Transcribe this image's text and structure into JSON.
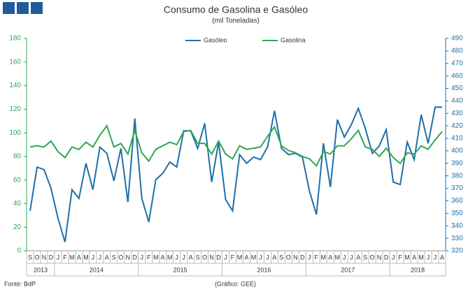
{
  "chart_data": {
    "type": "line",
    "title": "Consumo de Gasolina e Gasóleo",
    "subtitle": "(mil Toneladas)",
    "categories": [
      "S",
      "O",
      "N",
      "D",
      "J",
      "F",
      "M",
      "A",
      "M",
      "J",
      "J",
      "A",
      "S",
      "O",
      "N",
      "D",
      "J",
      "F",
      "M",
      "A",
      "M",
      "J",
      "J",
      "A",
      "S",
      "O",
      "N",
      "D",
      "J",
      "F",
      "M",
      "A",
      "M",
      "J",
      "J",
      "A",
      "S",
      "O",
      "N",
      "D",
      "J",
      "F",
      "M",
      "A",
      "M",
      "J",
      "J",
      "A",
      "S",
      "O",
      "N",
      "D",
      "J",
      "F",
      "M",
      "A",
      "M",
      "J",
      "J",
      "A"
    ],
    "year_groups": [
      {
        "label": "2013",
        "months": 4
      },
      {
        "label": "2014",
        "months": 12
      },
      {
        "label": "2015",
        "months": 12
      },
      {
        "label": "2016",
        "months": 12
      },
      {
        "label": "2017",
        "months": 12
      },
      {
        "label": "2018",
        "months": 8
      }
    ],
    "series": [
      {
        "name": "Gasóleo",
        "color": "#1f6fa8",
        "axis": "y2",
        "values": [
          352,
          387,
          385,
          370,
          346,
          327,
          369,
          362,
          390,
          369,
          403,
          398,
          376,
          402,
          359,
          426,
          362,
          343,
          377,
          382,
          391,
          387,
          416,
          416,
          402,
          422,
          375,
          407,
          361,
          352,
          397,
          390,
          395,
          393,
          403,
          432,
          402,
          397,
          398,
          395,
          368,
          349,
          406,
          371,
          425,
          411,
          421,
          434,
          418,
          398,
          404,
          417,
          375,
          373,
          407,
          393,
          429,
          406,
          435,
          435
        ]
      },
      {
        "name": "Gasolina",
        "color": "#2ea84f",
        "values": [
          88,
          89,
          88,
          93,
          84,
          79,
          88,
          86,
          92,
          88,
          98,
          106,
          88,
          91,
          82,
          102,
          83,
          76,
          86,
          89,
          92,
          90,
          101,
          102,
          91,
          91,
          82,
          93,
          82,
          78,
          89,
          86,
          87,
          88,
          97,
          105,
          89,
          85,
          83,
          80,
          78,
          72,
          84,
          82,
          89,
          89,
          95,
          102,
          88,
          86,
          80,
          87,
          79,
          74,
          83,
          82,
          89,
          86,
          94,
          101
        ]
      }
    ],
    "ylim": [
      0,
      180
    ],
    "yticks": [
      0,
      20,
      40,
      60,
      80,
      100,
      120,
      140,
      160,
      180
    ],
    "y2lim": [
      320,
      490
    ],
    "y2ticks": [
      320,
      330,
      340,
      350,
      360,
      370,
      380,
      390,
      400,
      410,
      420,
      430,
      440,
      450,
      460,
      470,
      480,
      490
    ],
    "grid": false,
    "source": "Fonte: BdP",
    "credit": "(Gráfico: GEE)"
  }
}
